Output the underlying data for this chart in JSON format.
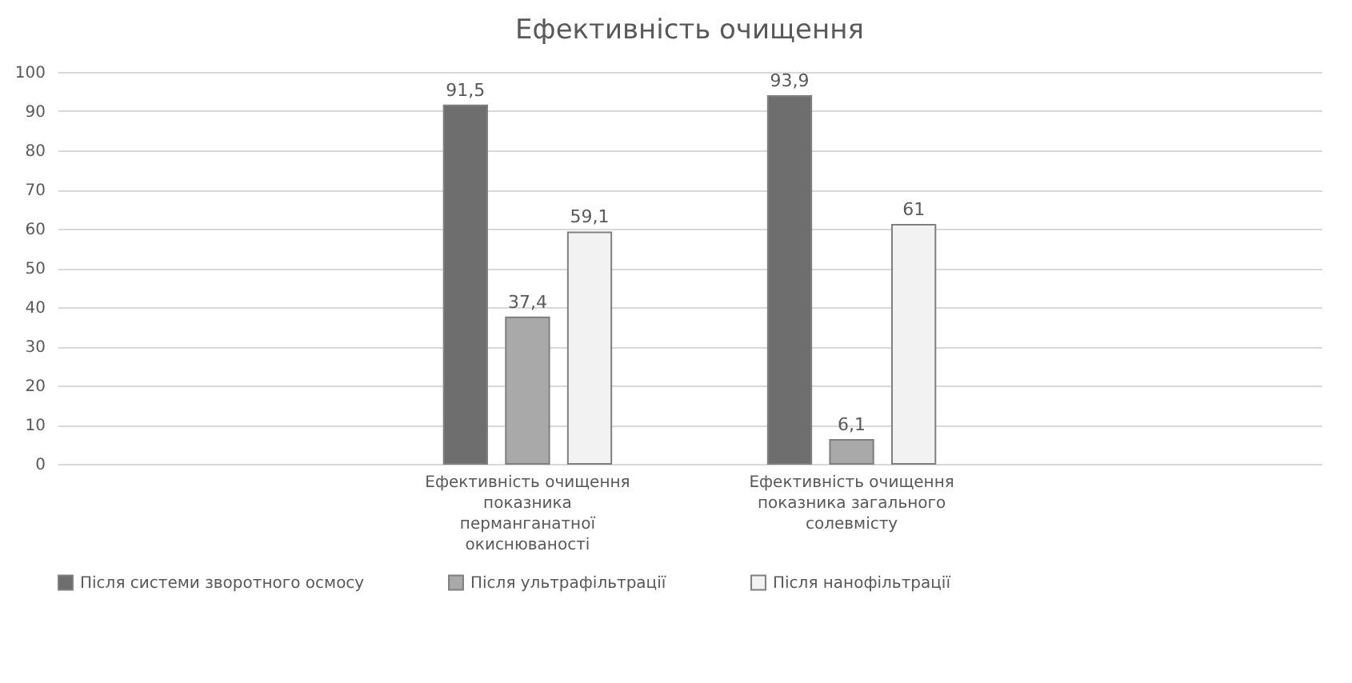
{
  "chart_data": {
    "type": "bar",
    "title": "Ефективність очищення",
    "categories": [
      null,
      "Ефективність очищення показника перманганатної окиснюваності",
      "Ефективність очищення показника загального солевмісту",
      null
    ],
    "series": [
      {
        "name": "Після системи зворотного осмосу",
        "color": "#6e6e6e",
        "values": [
          null,
          91.5,
          93.9,
          null
        ],
        "value_labels": [
          null,
          "91,5",
          "93,9",
          null
        ]
      },
      {
        "name": "Після ультрафільтрації",
        "color": "#a9a9a9",
        "values": [
          null,
          37.4,
          6.1,
          null
        ],
        "value_labels": [
          null,
          "37,4",
          "6,1",
          null
        ]
      },
      {
        "name": "Після нанофільтрації",
        "color": "#f2f2f2",
        "values": [
          null,
          59.1,
          61,
          null
        ],
        "value_labels": [
          null,
          "59,1",
          "61",
          null
        ]
      }
    ],
    "ylim": [
      0,
      100
    ],
    "yticks": [
      0,
      10,
      20,
      30,
      40,
      50,
      60,
      70,
      80,
      90,
      100
    ],
    "grid": "y",
    "legend": "bottom"
  }
}
